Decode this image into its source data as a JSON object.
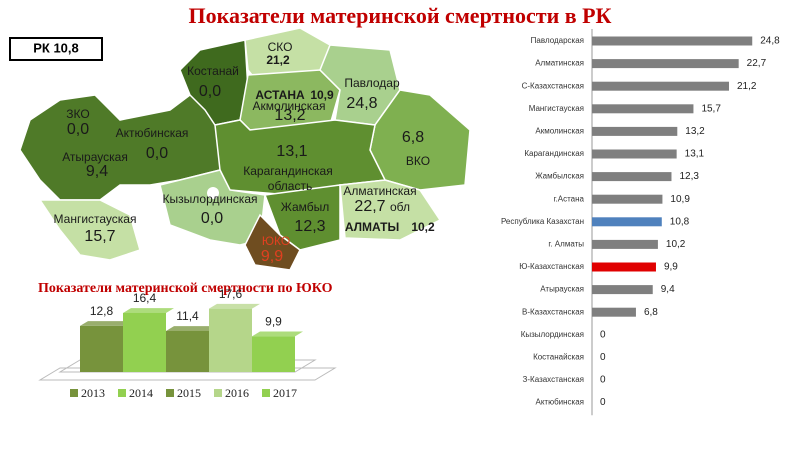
{
  "title": "Показатели материнской смертности в РК",
  "rk_label": "РК 10,8",
  "map": {
    "regions": [
      {
        "name": "СКО",
        "value": "21,2"
      },
      {
        "name": "Костанай",
        "value": "0,0"
      },
      {
        "name": "АСТАНА",
        "value": "10,9"
      },
      {
        "name": "Акмолинская",
        "value": "13,2"
      },
      {
        "name": "Павлодар",
        "value": "24,8"
      },
      {
        "name": "ЗКО",
        "value": "0,0"
      },
      {
        "name": "Актюбинская",
        "value": "0,0"
      },
      {
        "name": "Атырауская",
        "value": "9,4"
      },
      {
        "name": "Карагандинская",
        "suffix": "область",
        "value": "13,1"
      },
      {
        "name": "ВКО",
        "value": "6,8"
      },
      {
        "name": "Кызылординская",
        "value": "0,0"
      },
      {
        "name": "Алматинская",
        "suffix": "обл",
        "value": "22,7"
      },
      {
        "name": "АЛМАТЫ",
        "value": "10,2"
      },
      {
        "name": "Жамбыл",
        "value": "12,3"
      },
      {
        "name": "ЮКО",
        "value": "9,9"
      },
      {
        "name": "Мангистауская",
        "value": "15,7"
      }
    ]
  },
  "chart_data": [
    {
      "type": "hbar",
      "categories": [
        "Павлодарская",
        "Алматинская",
        "С-Казахстанская",
        "Мангистауская",
        "Акмолинская",
        "Карагандинская",
        "Жамбылская",
        "г.Астана",
        "Республика Казахстан",
        "г. Алматы",
        "Ю-Казахстанская",
        "Атырауская",
        "В-Казахстанская",
        "Кызылординская",
        "Костанайская",
        "З-Казахстанская",
        "Актюбинская"
      ],
      "values": [
        24.8,
        22.7,
        21.2,
        15.7,
        13.2,
        13.1,
        12.3,
        10.9,
        10.8,
        10.2,
        9.9,
        9.4,
        6.8,
        0,
        0,
        0,
        0
      ],
      "value_labels": [
        "24,8",
        "22,7",
        "21,2",
        "15,7",
        "13,2",
        "13,1",
        "12,3",
        "10,9",
        "10,8",
        "10,2",
        "9,9",
        "9,4",
        "6,8",
        "0",
        "0",
        "0",
        "0"
      ],
      "colors": [
        "#7f7f7f",
        "#7f7f7f",
        "#7f7f7f",
        "#7f7f7f",
        "#7f7f7f",
        "#7f7f7f",
        "#7f7f7f",
        "#7f7f7f",
        "#4f81bd",
        "#7f7f7f",
        "#e00000",
        "#7f7f7f",
        "#7f7f7f",
        "#7f7f7f",
        "#7f7f7f",
        "#7f7f7f",
        "#7f7f7f"
      ],
      "xlim": [
        0,
        26
      ]
    },
    {
      "type": "column3d",
      "title": "Показатели материнской смертности по ЮКО",
      "categories": [
        "2013",
        "2014",
        "2015",
        "2016",
        "2017"
      ],
      "values": [
        12.8,
        16.4,
        11.4,
        17.6,
        9.9
      ],
      "value_labels": [
        "12,8",
        "16,4",
        "11,4",
        "17,6",
        "9,9"
      ],
      "colors": [
        "#77933c",
        "#92d050",
        "#77933c",
        "#b5d68a",
        "#92d050"
      ],
      "ylim": [
        0,
        20
      ]
    }
  ]
}
